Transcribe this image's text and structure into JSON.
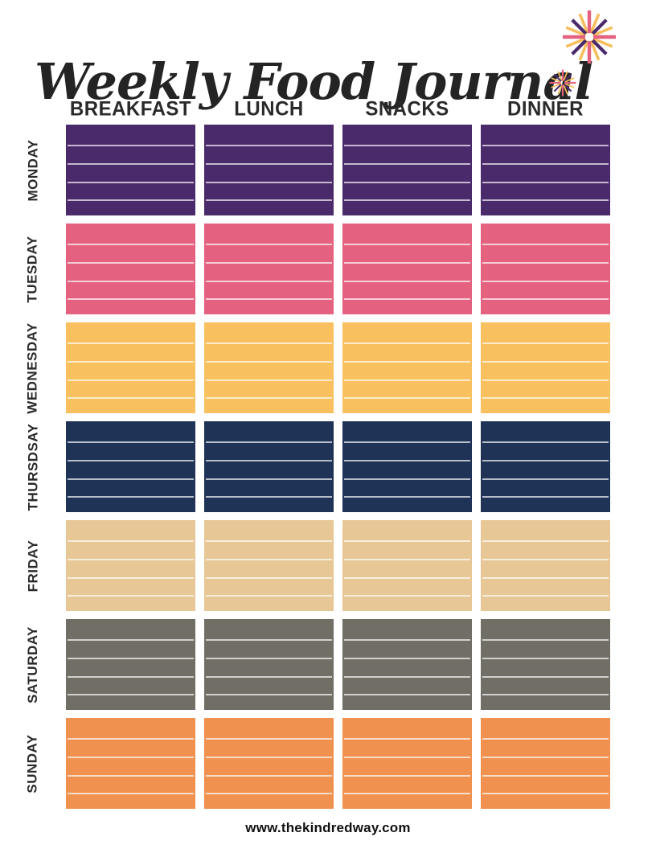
{
  "page": {
    "title": "Weekly Food Journal",
    "footer_url": "www.thekindredway.com"
  },
  "theme": {
    "accent_pink": "#e4627f",
    "accent_purple": "#4b2a6b",
    "accent_gold": "#f6bf5e",
    "heading_text": "#2a2a2a"
  },
  "table": {
    "columns": [
      "BREAKFAST",
      "LUNCH",
      "SNACKS",
      "DINNER"
    ],
    "days": [
      {
        "label": "MONDAY",
        "color": "#4b2a6b"
      },
      {
        "label": "TUESDAY",
        "color": "#e4627f"
      },
      {
        "label": "WEDNESDAY",
        "color": "#f8c05e"
      },
      {
        "label": "THURSDSAY",
        "color": "#1e3355"
      },
      {
        "label": "FRIDAY",
        "color": "#e6c795"
      },
      {
        "label": "SATURDAY",
        "color": "#716e66"
      },
      {
        "label": "SUNDAY",
        "color": "#f0914f"
      }
    ],
    "lines_per_cell": 4
  }
}
